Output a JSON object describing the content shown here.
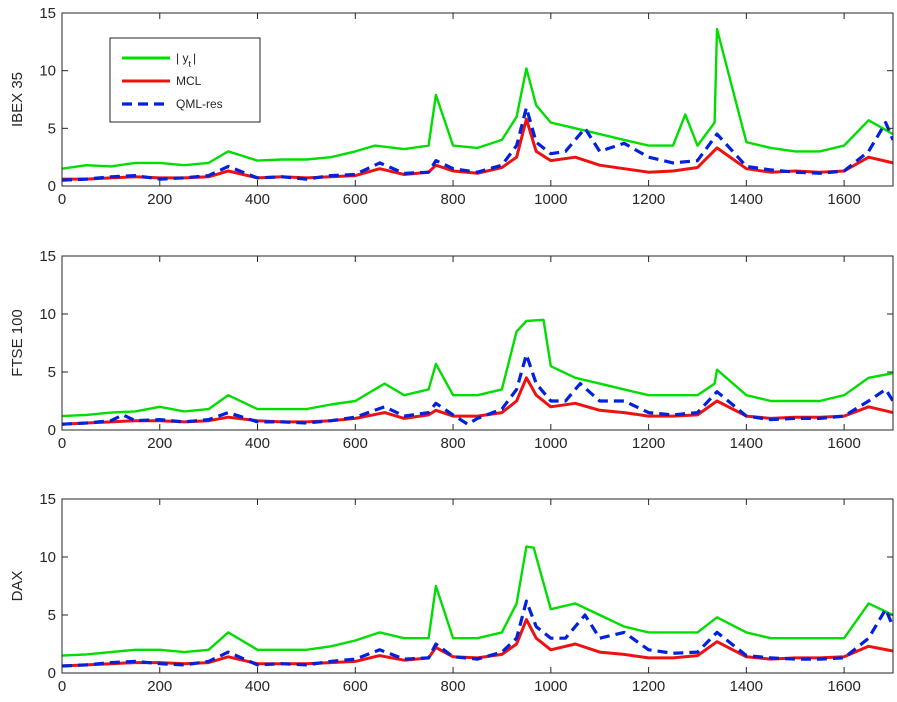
{
  "chart_data": [
    {
      "type": "line",
      "ylabel": "IBEX 35",
      "xlim": [
        0,
        1700
      ],
      "ylim": [
        0,
        15
      ],
      "xticks": [
        0,
        200,
        400,
        600,
        800,
        1000,
        1200,
        1400,
        1600
      ],
      "yticks": [
        0,
        5,
        10,
        15
      ],
      "legend": {
        "placement": "top-left",
        "entries": [
          "| y",
          "MCL",
          "QML-res"
        ],
        "subscript": "t"
      },
      "series": [
        {
          "name": "| y",
          "style": "solid",
          "color": "#00dd00",
          "x": [
            0,
            50,
            100,
            150,
            200,
            250,
            300,
            340,
            400,
            450,
            500,
            550,
            600,
            640,
            700,
            750,
            765,
            800,
            850,
            900,
            930,
            950,
            970,
            1000,
            1050,
            1100,
            1150,
            1200,
            1250,
            1275,
            1300,
            1335,
            1340,
            1400,
            1450,
            1500,
            1550,
            1600,
            1650,
            1700
          ],
          "values": [
            1.5,
            1.8,
            1.7,
            2.0,
            2.0,
            1.8,
            2.0,
            3.0,
            2.2,
            2.3,
            2.3,
            2.5,
            3.0,
            3.5,
            3.2,
            3.5,
            7.9,
            3.5,
            3.3,
            4.0,
            6.0,
            10.2,
            7.0,
            5.5,
            5.0,
            4.5,
            4.0,
            3.5,
            3.5,
            6.2,
            3.5,
            5.5,
            13.6,
            3.8,
            3.3,
            3.0,
            3.0,
            3.5,
            5.7,
            4.5
          ]
        },
        {
          "name": "MCL",
          "style": "solid",
          "color": "#ee1111",
          "x": [
            0,
            50,
            100,
            150,
            200,
            250,
            300,
            340,
            400,
            450,
            500,
            550,
            600,
            650,
            700,
            750,
            765,
            800,
            850,
            900,
            930,
            950,
            970,
            1000,
            1050,
            1100,
            1150,
            1200,
            1250,
            1300,
            1340,
            1400,
            1450,
            1500,
            1550,
            1600,
            1650,
            1700
          ],
          "values": [
            0.6,
            0.6,
            0.7,
            0.8,
            0.7,
            0.7,
            0.8,
            1.3,
            0.7,
            0.8,
            0.7,
            0.8,
            0.9,
            1.5,
            1.0,
            1.2,
            1.8,
            1.3,
            1.1,
            1.6,
            2.5,
            5.8,
            3.0,
            2.2,
            2.5,
            1.8,
            1.5,
            1.2,
            1.3,
            1.6,
            3.3,
            1.5,
            1.2,
            1.3,
            1.2,
            1.3,
            2.5,
            2.0
          ]
        },
        {
          "name": "QML-res",
          "style": "dashed",
          "color": "#0022dd",
          "x": [
            0,
            50,
            100,
            150,
            200,
            250,
            300,
            340,
            400,
            450,
            500,
            550,
            600,
            650,
            700,
            750,
            765,
            800,
            850,
            900,
            930,
            950,
            970,
            1000,
            1030,
            1070,
            1100,
            1150,
            1200,
            1250,
            1300,
            1340,
            1400,
            1450,
            1500,
            1550,
            1600,
            1650,
            1685,
            1700
          ],
          "values": [
            0.5,
            0.6,
            0.8,
            0.9,
            0.6,
            0.7,
            0.9,
            1.7,
            0.7,
            0.8,
            0.6,
            0.9,
            1.0,
            2.0,
            1.1,
            1.2,
            2.2,
            1.5,
            1.2,
            1.8,
            3.5,
            6.8,
            3.8,
            2.8,
            3.0,
            5.0,
            3.0,
            3.7,
            2.5,
            2.0,
            2.2,
            4.5,
            1.7,
            1.4,
            1.2,
            1.1,
            1.3,
            3.0,
            5.5,
            4.0
          ]
        }
      ]
    },
    {
      "type": "line",
      "ylabel": "FTSE 100",
      "xlim": [
        0,
        1700
      ],
      "ylim": [
        0,
        15
      ],
      "xticks": [
        0,
        200,
        400,
        600,
        800,
        1000,
        1200,
        1400,
        1600
      ],
      "yticks": [
        0,
        5,
        10,
        15
      ],
      "series": [
        {
          "name": "| y",
          "style": "solid",
          "color": "#00dd00",
          "x": [
            0,
            50,
            100,
            150,
            200,
            250,
            300,
            340,
            400,
            450,
            500,
            550,
            600,
            660,
            700,
            750,
            765,
            800,
            850,
            900,
            930,
            950,
            985,
            1000,
            1050,
            1100,
            1150,
            1200,
            1250,
            1300,
            1335,
            1340,
            1400,
            1450,
            1500,
            1550,
            1600,
            1650,
            1700
          ],
          "values": [
            1.2,
            1.3,
            1.5,
            1.6,
            2.0,
            1.6,
            1.8,
            3.0,
            1.8,
            1.8,
            1.8,
            2.2,
            2.5,
            4.0,
            3.0,
            3.5,
            5.7,
            3.0,
            3.0,
            3.5,
            8.5,
            9.4,
            9.5,
            5.5,
            4.5,
            4.0,
            3.5,
            3.0,
            3.0,
            3.0,
            4.0,
            5.2,
            3.0,
            2.5,
            2.5,
            2.5,
            3.0,
            4.5,
            4.9
          ]
        },
        {
          "name": "MCL",
          "style": "solid",
          "color": "#ee1111",
          "x": [
            0,
            50,
            100,
            150,
            200,
            250,
            300,
            340,
            400,
            450,
            500,
            550,
            600,
            660,
            700,
            750,
            765,
            800,
            850,
            900,
            930,
            950,
            970,
            1000,
            1050,
            1100,
            1150,
            1200,
            1250,
            1300,
            1340,
            1400,
            1450,
            1500,
            1550,
            1600,
            1650,
            1700
          ],
          "values": [
            0.5,
            0.6,
            0.7,
            0.8,
            0.8,
            0.7,
            0.8,
            1.1,
            0.8,
            0.7,
            0.7,
            0.8,
            1.0,
            1.5,
            1.0,
            1.3,
            1.7,
            1.2,
            1.2,
            1.5,
            2.5,
            4.5,
            3.0,
            2.0,
            2.3,
            1.7,
            1.5,
            1.2,
            1.2,
            1.3,
            2.5,
            1.2,
            1.0,
            1.1,
            1.1,
            1.2,
            2.0,
            1.5
          ]
        },
        {
          "name": "QML-res",
          "style": "dashed",
          "color": "#0022dd",
          "x": [
            0,
            50,
            100,
            125,
            150,
            200,
            250,
            300,
            340,
            400,
            450,
            500,
            550,
            600,
            660,
            700,
            750,
            765,
            800,
            830,
            850,
            900,
            930,
            950,
            970,
            1000,
            1030,
            1060,
            1100,
            1150,
            1200,
            1250,
            1300,
            1340,
            1400,
            1450,
            1500,
            1550,
            1600,
            1650,
            1685,
            1700
          ],
          "values": [
            0.5,
            0.6,
            0.8,
            1.3,
            0.8,
            0.9,
            0.7,
            0.9,
            1.5,
            0.7,
            0.7,
            0.6,
            0.8,
            1.1,
            2.0,
            1.2,
            1.5,
            2.3,
            1.3,
            0.5,
            1.0,
            1.8,
            3.5,
            6.5,
            4.0,
            2.5,
            2.5,
            4.0,
            2.5,
            2.5,
            1.5,
            1.3,
            1.5,
            3.3,
            1.2,
            0.9,
            1.0,
            1.0,
            1.2,
            2.5,
            3.5,
            2.5
          ]
        }
      ]
    },
    {
      "type": "line",
      "ylabel": "DAX",
      "xlim": [
        0,
        1700
      ],
      "ylim": [
        0,
        15
      ],
      "xticks": [
        0,
        200,
        400,
        600,
        800,
        1000,
        1200,
        1400,
        1600
      ],
      "yticks": [
        0,
        5,
        10,
        15
      ],
      "series": [
        {
          "name": "| y",
          "style": "solid",
          "color": "#00dd00",
          "x": [
            0,
            50,
            100,
            150,
            200,
            250,
            300,
            340,
            400,
            450,
            500,
            550,
            600,
            650,
            700,
            750,
            765,
            800,
            850,
            900,
            930,
            950,
            965,
            1000,
            1050,
            1100,
            1150,
            1200,
            1250,
            1300,
            1340,
            1400,
            1450,
            1500,
            1550,
            1600,
            1650,
            1700
          ],
          "values": [
            1.5,
            1.6,
            1.8,
            2.0,
            2.0,
            1.8,
            2.0,
            3.5,
            2.0,
            2.0,
            2.0,
            2.3,
            2.8,
            3.5,
            3.0,
            3.0,
            7.5,
            3.0,
            3.0,
            3.5,
            6.0,
            10.9,
            10.8,
            5.5,
            6.0,
            5.0,
            4.0,
            3.5,
            3.5,
            3.5,
            4.8,
            3.5,
            3.0,
            3.0,
            3.0,
            3.0,
            6.0,
            5.0
          ]
        },
        {
          "name": "MCL",
          "style": "solid",
          "color": "#ee1111",
          "x": [
            0,
            50,
            100,
            150,
            200,
            250,
            300,
            340,
            400,
            450,
            500,
            550,
            600,
            650,
            700,
            750,
            765,
            800,
            850,
            900,
            930,
            950,
            970,
            1000,
            1050,
            1100,
            1150,
            1200,
            1250,
            1300,
            1340,
            1400,
            1450,
            1500,
            1550,
            1600,
            1650,
            1700
          ],
          "values": [
            0.6,
            0.7,
            0.8,
            0.9,
            0.9,
            0.8,
            0.9,
            1.4,
            0.8,
            0.8,
            0.8,
            0.9,
            1.0,
            1.5,
            1.1,
            1.3,
            2.2,
            1.4,
            1.3,
            1.6,
            2.5,
            4.6,
            3.0,
            2.0,
            2.5,
            1.8,
            1.6,
            1.3,
            1.3,
            1.5,
            2.7,
            1.4,
            1.2,
            1.3,
            1.3,
            1.4,
            2.3,
            1.9
          ]
        },
        {
          "name": "QML-res",
          "style": "dashed",
          "color": "#0022dd",
          "x": [
            0,
            50,
            100,
            150,
            200,
            250,
            300,
            340,
            400,
            450,
            500,
            550,
            600,
            650,
            700,
            750,
            765,
            800,
            850,
            900,
            930,
            950,
            970,
            1000,
            1030,
            1070,
            1100,
            1150,
            1200,
            1250,
            1300,
            1340,
            1400,
            1450,
            1500,
            1550,
            1600,
            1650,
            1685,
            1700
          ],
          "values": [
            0.6,
            0.7,
            0.9,
            1.0,
            0.8,
            0.7,
            1.0,
            1.8,
            0.7,
            0.8,
            0.7,
            1.0,
            1.2,
            2.0,
            1.2,
            1.3,
            2.5,
            1.4,
            1.2,
            1.8,
            3.0,
            6.2,
            4.0,
            3.0,
            3.0,
            5.0,
            3.0,
            3.5,
            2.0,
            1.7,
            1.8,
            3.5,
            1.5,
            1.3,
            1.2,
            1.2,
            1.3,
            3.0,
            5.5,
            4.0
          ]
        }
      ]
    }
  ]
}
